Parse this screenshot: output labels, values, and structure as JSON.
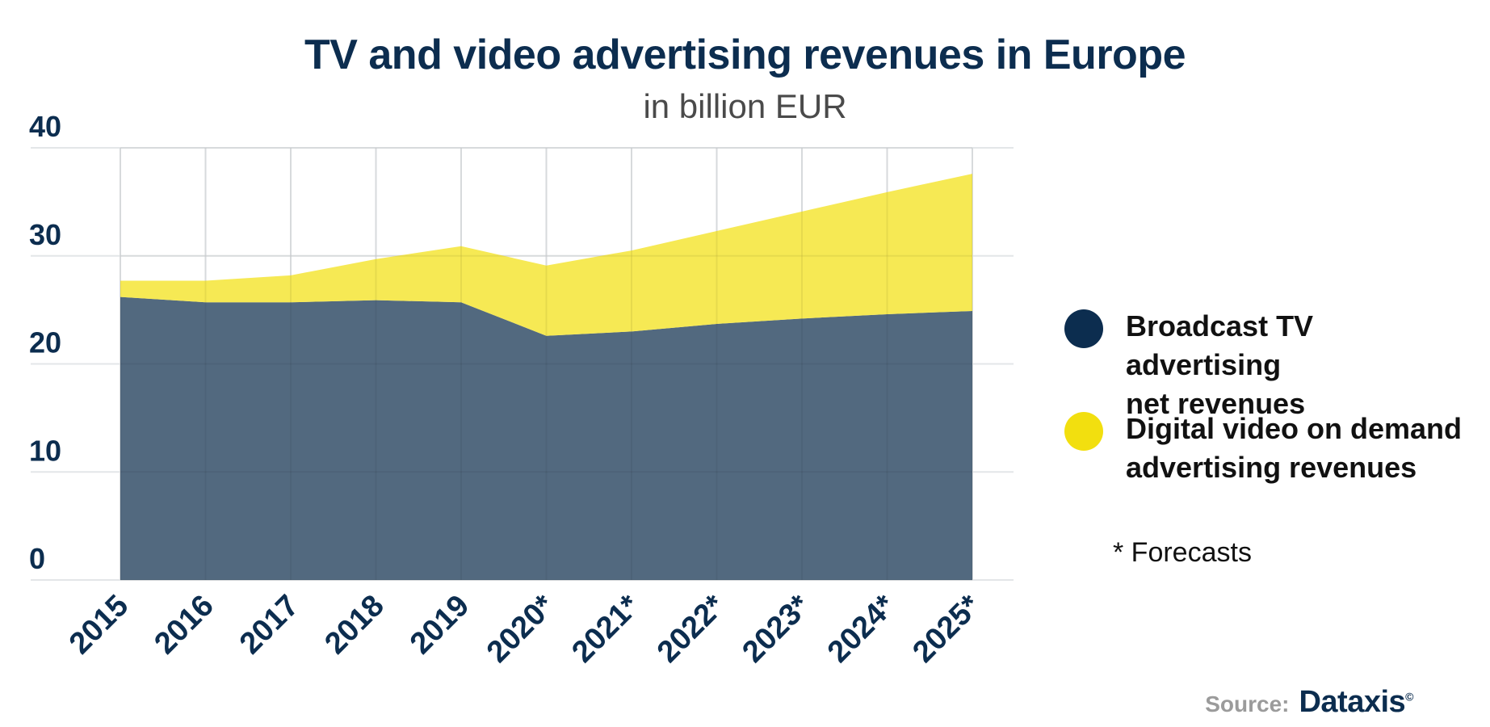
{
  "chart_data": {
    "type": "area",
    "stacked": true,
    "title": "TV and video advertising revenues in Europe",
    "subtitle": "in billion EUR",
    "categories": [
      "2015",
      "2016",
      "2017",
      "2018",
      "2019",
      "2020*",
      "2021*",
      "2022*",
      "2023*",
      "2024*",
      "2025*"
    ],
    "series": [
      {
        "name": "Broadcast TV advertising net revenues",
        "color": "#52697f",
        "values": [
          26.2,
          25.7,
          25.7,
          25.9,
          25.7,
          22.6,
          23.0,
          23.7,
          24.2,
          24.6,
          24.9
        ]
      },
      {
        "name": "Digital video on demand advertising revenues",
        "color": "#f5e63c",
        "values": [
          1.5,
          2.0,
          2.5,
          3.8,
          5.2,
          6.5,
          7.5,
          8.6,
          9.9,
          11.3,
          12.7
        ]
      }
    ],
    "ylim": [
      0,
      40
    ],
    "yticks": [
      0,
      10,
      20,
      30,
      40
    ],
    "grid": true,
    "legend_position": "right"
  },
  "legend": {
    "marker_colors": [
      "#0c2d4f",
      "#f2df0f"
    ],
    "line1": [
      "Broadcast TV advertising",
      "Digital video on demand"
    ],
    "line2": [
      "net revenues",
      "advertising revenues"
    ]
  },
  "note": "* Forecasts",
  "source": {
    "label": "Source:",
    "logo": "Dataxis",
    "copyright": "©"
  }
}
